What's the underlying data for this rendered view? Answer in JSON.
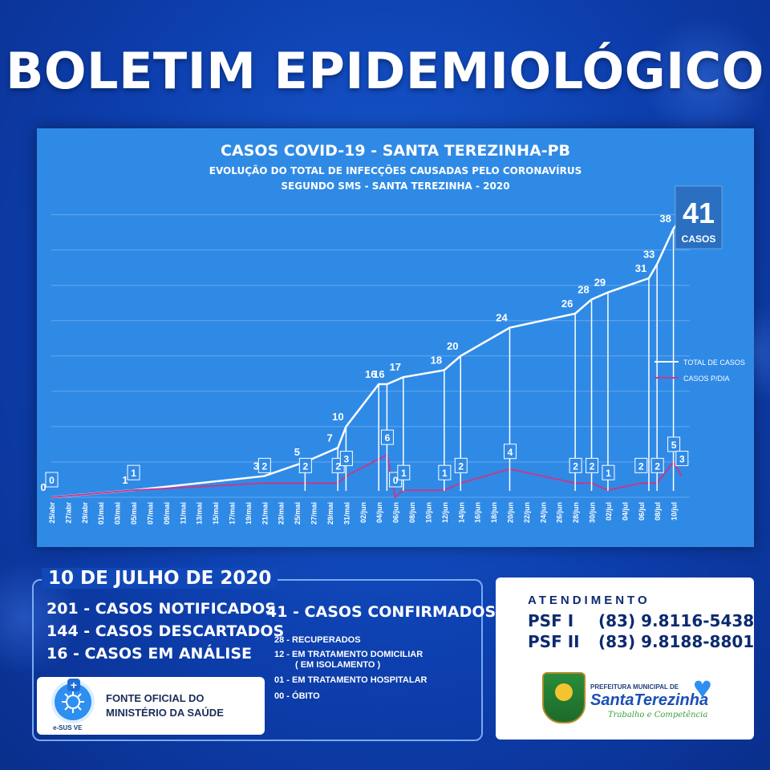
{
  "headline": "BOLETIM EPIDEMIOLÓGICO",
  "chart_data": {
    "type": "line",
    "title": "CASOS COVID-19 - SANTA TEREZINHA-PB",
    "subtitle1": "EVOLUÇÃO DO TOTAL DE INFECÇÕES CAUSADAS PELO CORONAVÍRUS",
    "subtitle2": "SEGUNDO SMS - SANTA TEREZINHA - 2020",
    "x": [
      "25/abr",
      "27/abr",
      "29/abr",
      "01/mai",
      "03/mai",
      "05/mai",
      "07/mai",
      "09/mai",
      "11/mai",
      "13/mai",
      "15/mai",
      "17/mai",
      "19/mai",
      "21/mai",
      "23/mai",
      "25/mai",
      "27/mai",
      "29/mai",
      "31/mai",
      "02/jun",
      "04/jun",
      "06/jun",
      "08/jun",
      "10/jun",
      "12/jun",
      "14/jun",
      "16/jun",
      "18/jun",
      "20/jun",
      "22/jun",
      "24/jun",
      "26/jun",
      "28/jun",
      "30/jun",
      "02/jul",
      "04/jul",
      "06/jul",
      "08/jul",
      "10/jul"
    ],
    "total_points": [
      {
        "day": 0,
        "value": 0,
        "label": "0"
      },
      {
        "day": 10,
        "value": 1,
        "label": "1"
      },
      {
        "day": 26,
        "value": 3,
        "label": "3"
      },
      {
        "day": 31,
        "value": 5,
        "label": "5"
      },
      {
        "day": 35,
        "value": 7,
        "label": "7"
      },
      {
        "day": 36,
        "value": 10,
        "label": "10"
      },
      {
        "day": 40,
        "value": 16,
        "label": "16"
      },
      {
        "day": 41,
        "value": 16,
        "label": "16"
      },
      {
        "day": 43,
        "value": 17,
        "label": "17"
      },
      {
        "day": 48,
        "value": 18,
        "label": "18"
      },
      {
        "day": 50,
        "value": 20,
        "label": "20"
      },
      {
        "day": 56,
        "value": 24,
        "label": "24"
      },
      {
        "day": 64,
        "value": 26,
        "label": "26"
      },
      {
        "day": 66,
        "value": 28,
        "label": "28"
      },
      {
        "day": 68,
        "value": 29,
        "label": "29"
      },
      {
        "day": 73,
        "value": 31,
        "label": "31"
      },
      {
        "day": 74,
        "value": 33,
        "label": "33"
      },
      {
        "day": 76,
        "value": 38,
        "label": "38"
      }
    ],
    "daily_points": [
      {
        "day": 0,
        "value": 0,
        "label": "0"
      },
      {
        "day": 10,
        "value": 1,
        "label": "1"
      },
      {
        "day": 26,
        "value": 2,
        "label": "2"
      },
      {
        "day": 31,
        "value": 2,
        "label": "2"
      },
      {
        "day": 35,
        "value": 2,
        "label": "2"
      },
      {
        "day": 36,
        "value": 3,
        "label": "3"
      },
      {
        "day": 41,
        "value": 6,
        "label": "6"
      },
      {
        "day": 42,
        "value": 0,
        "label": "0"
      },
      {
        "day": 43,
        "value": 1,
        "label": "1"
      },
      {
        "day": 48,
        "value": 1,
        "label": "1"
      },
      {
        "day": 50,
        "value": 2,
        "label": "2"
      },
      {
        "day": 56,
        "value": 4,
        "label": "4"
      },
      {
        "day": 64,
        "value": 2,
        "label": "2"
      },
      {
        "day": 66,
        "value": 2,
        "label": "2"
      },
      {
        "day": 68,
        "value": 1,
        "label": "1"
      },
      {
        "day": 72,
        "value": 2,
        "label": "2"
      },
      {
        "day": 74,
        "value": 2,
        "label": "2"
      },
      {
        "day": 76,
        "value": 5,
        "label": "5"
      },
      {
        "day": 77,
        "value": 3,
        "label": "3"
      }
    ],
    "legend": [
      "TOTAL DE CASOS",
      "CASOS P/DIA"
    ],
    "legend_position": "right",
    "latest_total": "41",
    "latest_total_caption": "CASOS",
    "colors": {
      "total": "#ffffff",
      "daily": "#c23b8a",
      "background": "#2f8ae6"
    },
    "grid": true
  },
  "summary": {
    "date": "10 DE JULHO DE 2020",
    "notificados": "201 - CASOS NOTIFICADOS",
    "descartados": "144 - CASOS DESCARTADOS",
    "em_analise": "16 - CASOS EM ANÁLISE",
    "confirmados": "41  -  CASOS CONFIRMADOS",
    "recuperados": "28 - RECUPERADOS",
    "domiciliar_1": "12 - EM TRATAMENTO DOMICILIAR",
    "domiciliar_2": "( EM ISOLAMENTO )",
    "hospitalar": "01 - EM TRATAMENTO HOSPITALAR",
    "obito": "00 - ÓBITO"
  },
  "source": {
    "line1": "FONTE OFICIAL DO",
    "line2": "MINISTÉRIO DA SAÚDE",
    "app_label": "e-SUS VE",
    "icon": "virus-icon"
  },
  "contact": {
    "title": "ATENDIMENTO",
    "psf1_label": "PSF I",
    "psf1_phone": "(83) 9.8116-5438",
    "psf2_label": "PSF II",
    "psf2_phone": "(83) 9.8188-8801",
    "logo_small": "PREFEITURA MUNICIPAL DE",
    "logo_big": "SantaTerezinha",
    "logo_slogan": "Trabalho e Competência"
  }
}
